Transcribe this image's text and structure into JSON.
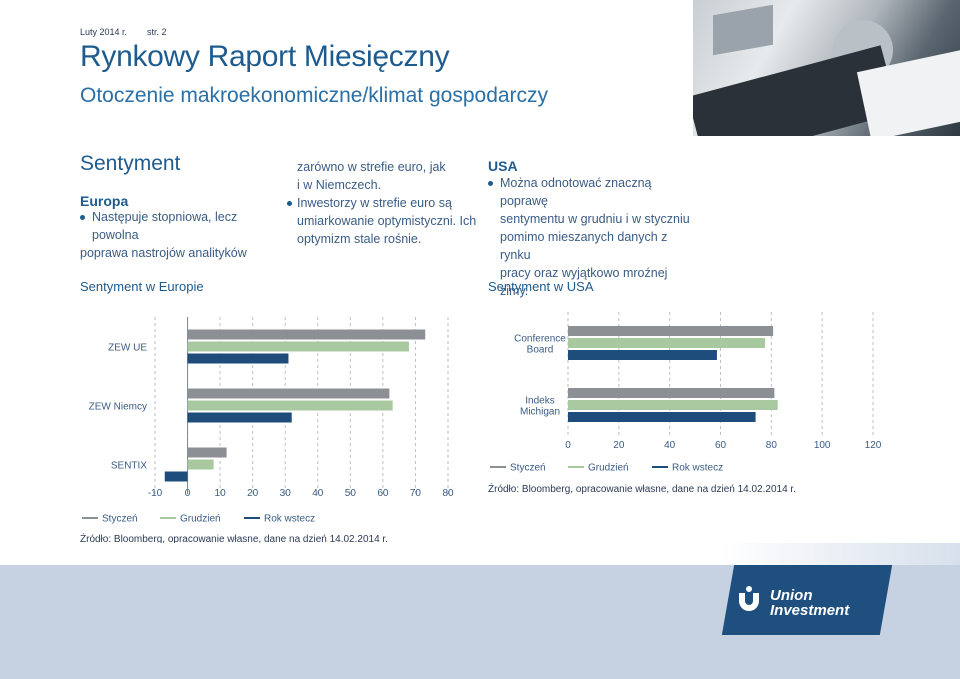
{
  "header": {
    "date": "Luty 2014 r.",
    "page": "str. 2",
    "title": "Rynkowy Raport Miesięczny",
    "subtitle": "Otoczenie makroekonomiczne/klimat gospodarczy"
  },
  "section": {
    "title": "Sentyment",
    "europe": {
      "heading": "Europa",
      "bullet1_line1": "Następuje stopniowa, lecz powolna",
      "bullet1_line2": "poprawa nastrojów analityków",
      "bullet1_cont1": "zarówno w strefie euro, jak",
      "bullet1_cont2": "i w Niemczech.",
      "bullet2_line1": "Inwestorzy w strefie euro są",
      "bullet2_line2": "umiarkowanie optymistyczni. Ich",
      "bullet2_line3": "optymizm stale rośnie."
    },
    "usa": {
      "heading": "USA",
      "bullet1_line1": "Można odnotować znaczną poprawę",
      "bullet1_line2": "sentymentu w grudniu i w styczniu",
      "bullet1_line3": "pomimo mieszanych danych z rynku",
      "bullet1_line4": "pracy oraz wyjątkowo mroźnej zimy."
    }
  },
  "colors": {
    "styczen": "#8c8f93",
    "grudzien": "#a8c9a0",
    "rok_wstecz": "#1e4d7b",
    "brand": "#1e5b8f"
  },
  "chart_data": [
    {
      "type": "bar",
      "orientation": "horizontal",
      "title": "Sentyment w Europie",
      "categories": [
        "ZEW UE",
        "ZEW Niemcy",
        "SENTIX"
      ],
      "series": [
        {
          "name": "Styczeń",
          "values": [
            73,
            62,
            12
          ]
        },
        {
          "name": "Grudzień",
          "values": [
            68,
            63,
            8
          ]
        },
        {
          "name": "Rok wstecz",
          "values": [
            31,
            32,
            -7
          ]
        }
      ],
      "xlim": [
        -10,
        80
      ],
      "ticks": [
        "-10",
        "0",
        "10",
        "20",
        "30",
        "40",
        "50",
        "60",
        "70",
        "80"
      ],
      "legend": "bottom",
      "source": "Źródło: Bloomberg, opracowanie własne, dane na dzień 14.02.2014 r."
    },
    {
      "type": "bar",
      "orientation": "horizontal",
      "title": "Sentyment w USA",
      "categories": [
        "Conference Board",
        "Indeks Michigan"
      ],
      "category_lines": [
        [
          "Conference",
          "Board"
        ],
        [
          "Indeks",
          "Michigan"
        ]
      ],
      "series": [
        {
          "name": "Styczeń",
          "values": [
            80.7,
            81.2
          ]
        },
        {
          "name": "Grudzień",
          "values": [
            77.5,
            82.5
          ]
        },
        {
          "name": "Rok wstecz",
          "values": [
            58.6,
            73.8
          ]
        }
      ],
      "xlim": [
        0,
        120
      ],
      "ticks": [
        "0",
        "20",
        "40",
        "60",
        "80",
        "100",
        "120"
      ],
      "legend": "bottom",
      "source": "Źródło: Bloomberg, opracowanie własne, dane na dzień 14.02.2014 r."
    }
  ],
  "logo": {
    "line1": "Union",
    "line2": "Investment"
  }
}
